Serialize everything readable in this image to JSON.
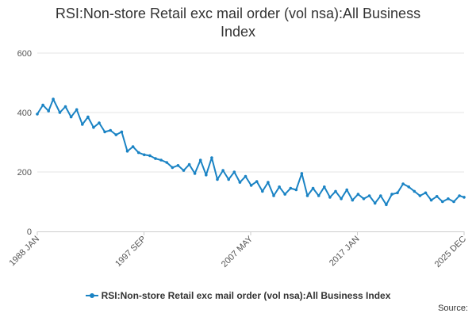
{
  "title": "RSI:Non-store Retail exc mail order (vol nsa):All Business Index",
  "credit": "Source:",
  "colors": {
    "series": "#1a83c4",
    "grid": "#e6e6e6",
    "axis": "#cccccc"
  },
  "chart_data": {
    "type": "line",
    "x_tick_labels": [
      "1988 JAN",
      "1997 SEP",
      "2007 MAY",
      "2017 JAN",
      "2025 DEC"
    ],
    "y_ticks": [
      0,
      200,
      400,
      600
    ],
    "ylim": [
      0,
      600
    ],
    "xlim": [
      "1988-01",
      "2025-12"
    ],
    "grid": true,
    "legend_placement": "bottom",
    "series": [
      {
        "name": "RSI:Non-store Retail exc mail order (vol nsa):All Business Index",
        "x": [
          "1988-01",
          "1988-07",
          "1989-01",
          "1989-06",
          "1990-01",
          "1990-07",
          "1991-01",
          "1991-07",
          "1992-01",
          "1992-07",
          "1993-01",
          "1993-07",
          "1994-01",
          "1994-07",
          "1995-01",
          "1995-07",
          "1996-01",
          "1996-07",
          "1997-01",
          "1997-07",
          "1998-01",
          "1998-07",
          "1999-01",
          "1999-07",
          "2000-01",
          "2000-07",
          "2001-01",
          "2001-07",
          "2002-01",
          "2002-07",
          "2003-01",
          "2003-07",
          "2004-01",
          "2004-07",
          "2005-01",
          "2005-07",
          "2006-01",
          "2006-07",
          "2007-01",
          "2007-07",
          "2008-01",
          "2008-07",
          "2009-01",
          "2009-07",
          "2010-01",
          "2010-07",
          "2011-01",
          "2011-07",
          "2012-01",
          "2012-07",
          "2013-01",
          "2013-07",
          "2014-01",
          "2014-07",
          "2015-01",
          "2015-07",
          "2016-01",
          "2016-07",
          "2017-01",
          "2017-07",
          "2018-01",
          "2018-07",
          "2019-01",
          "2019-07",
          "2020-01",
          "2020-07",
          "2021-01",
          "2021-07",
          "2022-01",
          "2022-07",
          "2023-01",
          "2023-07",
          "2024-01",
          "2024-07",
          "2025-01",
          "2025-07",
          "2025-12"
        ],
        "values": [
          395,
          425,
          405,
          445,
          400,
          420,
          385,
          410,
          360,
          385,
          350,
          365,
          335,
          340,
          325,
          335,
          270,
          285,
          265,
          258,
          255,
          245,
          240,
          232,
          215,
          222,
          205,
          225,
          195,
          240,
          190,
          248,
          175,
          205,
          175,
          200,
          165,
          185,
          155,
          168,
          135,
          165,
          120,
          150,
          125,
          145,
          140,
          195,
          120,
          145,
          120,
          150,
          115,
          135,
          110,
          140,
          105,
          125,
          110,
          120,
          95,
          120,
          90,
          125,
          130,
          160,
          150,
          135,
          120,
          130,
          105,
          118,
          100,
          110,
          100,
          120,
          115
        ]
      }
    ]
  }
}
